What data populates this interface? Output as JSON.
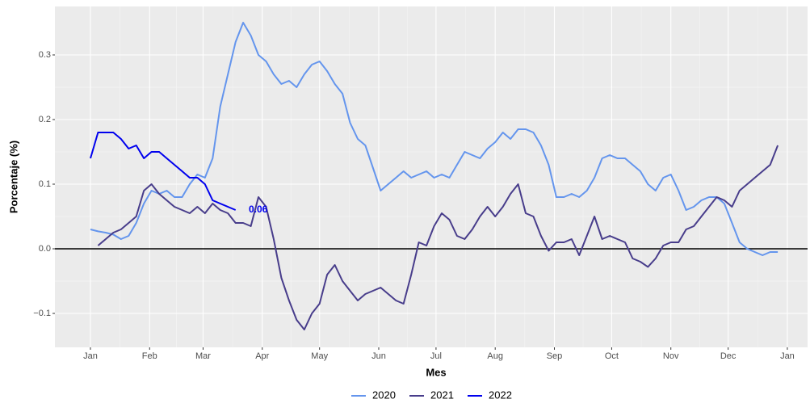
{
  "chart_data": {
    "type": "line",
    "x_label": "Mes",
    "y_label": "Porcentaje (%)",
    "xlim": [
      -17.6,
      376.6
    ],
    "ylim": [
      -0.1525,
      0.375
    ],
    "xticks": [
      {
        "value": 1,
        "label": "Jan"
      },
      {
        "value": 32,
        "label": "Feb"
      },
      {
        "value": 60,
        "label": "Mar"
      },
      {
        "value": 91,
        "label": "Apr"
      },
      {
        "value": 121,
        "label": "May"
      },
      {
        "value": 152,
        "label": "Jun"
      },
      {
        "value": 182,
        "label": "Jul"
      },
      {
        "value": 213,
        "label": "Aug"
      },
      {
        "value": 244,
        "label": "Sep"
      },
      {
        "value": 274,
        "label": "Oct"
      },
      {
        "value": 305,
        "label": "Nov"
      },
      {
        "value": 335,
        "label": "Dec"
      },
      {
        "value": 366,
        "label": "Jan"
      }
    ],
    "yticks": [
      {
        "value": -0.1,
        "label": "−0.1"
      },
      {
        "value": 0,
        "label": "0.0"
      },
      0.1,
      0.2,
      0.3
    ],
    "hline": 0,
    "grid": true,
    "legend": "bottom",
    "x": [
      1,
      5,
      9,
      13,
      17,
      21,
      25,
      29,
      33,
      37,
      41,
      45,
      49,
      53,
      57,
      61,
      65,
      69,
      73,
      77,
      81,
      85,
      89,
      93,
      97,
      101,
      105,
      109,
      113,
      117,
      121,
      125,
      129,
      133,
      137,
      141,
      145,
      149,
      153,
      157,
      161,
      165,
      169,
      173,
      177,
      181,
      185,
      189,
      193,
      197,
      201,
      205,
      209,
      213,
      217,
      221,
      225,
      229,
      233,
      237,
      241,
      245,
      249,
      253,
      257,
      261,
      265,
      269,
      273,
      277,
      281,
      285,
      289,
      293,
      297,
      301,
      305,
      309,
      313,
      317,
      321,
      325,
      329,
      333,
      337,
      341,
      345,
      349,
      353,
      357,
      361
    ],
    "series": [
      {
        "name": "2020",
        "color": "#6495ed",
        "values": [
          0.03,
          0.027,
          0.025,
          0.022,
          0.015,
          0.02,
          0.04,
          0.07,
          0.09,
          0.085,
          0.09,
          0.08,
          0.08,
          0.1,
          0.115,
          0.11,
          0.14,
          0.22,
          0.27,
          0.32,
          0.35,
          0.33,
          0.3,
          0.29,
          0.27,
          0.255,
          0.26,
          0.25,
          0.27,
          0.285,
          0.29,
          0.275,
          0.255,
          0.24,
          0.195,
          0.17,
          0.16,
          0.125,
          0.09,
          0.1,
          0.11,
          0.12,
          0.11,
          0.115,
          0.12,
          0.11,
          0.115,
          0.11,
          0.13,
          0.15,
          0.145,
          0.14,
          0.155,
          0.165,
          0.18,
          0.17,
          0.185,
          0.185,
          0.18,
          0.16,
          0.13,
          0.08,
          0.08,
          0.085,
          0.08,
          0.09,
          0.11,
          0.14,
          0.145,
          0.14,
          0.14,
          0.13,
          0.12,
          0.1,
          0.09,
          0.11,
          0.115,
          0.09,
          0.06,
          0.065,
          0.075,
          0.08,
          0.08,
          0.07,
          0.04,
          0.01,
          0.0,
          -0.005,
          -0.01,
          -0.005,
          -0.005
        ]
      },
      {
        "name": "2021",
        "color": "#483d8b",
        "values": [
          null,
          0.005,
          0.015,
          0.025,
          0.03,
          0.04,
          0.05,
          0.09,
          0.1,
          0.085,
          0.075,
          0.065,
          0.06,
          0.055,
          0.065,
          0.055,
          0.07,
          0.06,
          0.055,
          0.04,
          0.04,
          0.035,
          0.08,
          0.065,
          0.015,
          -0.045,
          -0.08,
          -0.11,
          -0.125,
          -0.1,
          -0.085,
          -0.04,
          -0.025,
          -0.05,
          -0.065,
          -0.08,
          -0.07,
          -0.065,
          -0.06,
          -0.07,
          -0.08,
          -0.085,
          -0.04,
          0.01,
          0.005,
          0.035,
          0.055,
          0.045,
          0.02,
          0.015,
          0.03,
          0.05,
          0.065,
          0.05,
          0.065,
          0.085,
          0.1,
          0.055,
          0.05,
          0.02,
          -0.003,
          0.01,
          0.01,
          0.015,
          -0.01,
          0.02,
          0.05,
          0.015,
          0.02,
          0.015,
          0.01,
          -0.015,
          -0.02,
          -0.028,
          -0.015,
          0.005,
          0.01,
          0.01,
          0.03,
          0.035,
          0.05,
          0.065,
          0.08,
          0.075,
          0.065,
          0.09,
          0.1,
          0.11,
          0.12,
          0.13,
          0.16
        ]
      },
      {
        "name": "2022",
        "color": "#0000ee",
        "annotation": "0.06",
        "values": [
          0.14,
          0.18,
          0.18,
          0.18,
          0.17,
          0.155,
          0.16,
          0.14,
          0.15,
          0.15,
          0.14,
          0.13,
          0.12,
          0.11,
          0.11,
          0.1,
          0.075,
          0.07,
          0.065,
          0.06,
          null,
          null,
          null,
          null,
          null,
          null,
          null,
          null,
          null,
          null,
          null,
          null,
          null,
          null,
          null,
          null,
          null,
          null,
          null,
          null,
          null,
          null,
          null,
          null,
          null,
          null,
          null,
          null,
          null,
          null,
          null,
          null,
          null,
          null,
          null,
          null,
          null,
          null,
          null,
          null,
          null,
          null,
          null,
          null,
          null,
          null,
          null,
          null,
          null,
          null,
          null,
          null,
          null,
          null,
          null,
          null,
          null,
          null,
          null,
          null,
          null,
          null,
          null,
          null,
          null,
          null,
          null,
          null,
          null,
          null,
          null
        ]
      }
    ]
  }
}
